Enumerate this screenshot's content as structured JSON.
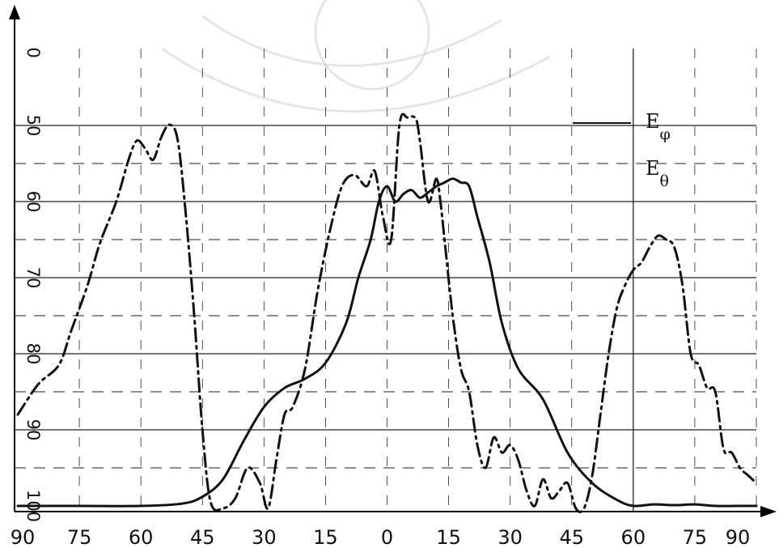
{
  "chart_data": {
    "type": "line",
    "title": "",
    "xlabel": "",
    "ylabel": "",
    "x_ticks": [
      "90",
      "75",
      "60",
      "45",
      "30",
      "15",
      "0",
      "15",
      "30",
      "45",
      "60",
      "75",
      "90"
    ],
    "x_tick_values": [
      -90,
      -75,
      -60,
      -45,
      -30,
      -15,
      0,
      15,
      30,
      45,
      60,
      75,
      90
    ],
    "y_ticks": [
      "0",
      "50",
      "60",
      "70",
      "80",
      "90",
      "100"
    ],
    "xlim": [
      -90,
      90
    ],
    "ylim_scale_labels": [
      "0",
      "50",
      "60",
      "70",
      "80",
      "90",
      "100"
    ],
    "y_inverted": true,
    "grid": true,
    "legend_position": "top-right",
    "legend": [
      {
        "label": "E_φ",
        "base": "E",
        "sub": "φ",
        "style": "solid"
      },
      {
        "label": "E_θ",
        "base": "E",
        "sub": "θ",
        "style": "dash-dot"
      }
    ],
    "series": [
      {
        "name": "E_φ",
        "style": "solid",
        "color": "#111111",
        "x": [
          -90,
          -75,
          -60,
          -50,
          -45,
          -40,
          -35,
          -30,
          -25,
          -20,
          -15,
          -10,
          -7,
          -4,
          -2,
          0,
          2,
          4,
          6,
          8,
          10,
          12,
          14,
          16,
          18,
          20,
          22,
          25,
          28,
          32,
          38,
          44,
          50,
          56,
          60,
          65,
          70,
          75,
          80,
          85,
          90
        ],
        "y": [
          100,
          100,
          100,
          99.7,
          98.8,
          96.5,
          91.5,
          87,
          84.5,
          83.3,
          81.2,
          76,
          70,
          65,
          60,
          58,
          60,
          59,
          58.5,
          59.5,
          58.8,
          58,
          57.5,
          57,
          57.5,
          58,
          62,
          68,
          76,
          82,
          86,
          93,
          97,
          99.2,
          100,
          99.8,
          99.9,
          99.8,
          100,
          100,
          100
        ]
      },
      {
        "name": "E_θ",
        "style": "dash-dot",
        "color": "#111111",
        "x": [
          -90,
          -85,
          -80,
          -77,
          -73,
          -70,
          -66,
          -63,
          -61,
          -59,
          -57,
          -55,
          -53,
          -51,
          -49,
          -47,
          -45,
          -43,
          -40,
          -37,
          -34,
          -31,
          -29,
          -27,
          -25,
          -23,
          -20,
          -17,
          -14,
          -11,
          -8,
          -5,
          -3,
          -1,
          1,
          3,
          5,
          7,
          8,
          10,
          12,
          13,
          14,
          16,
          18,
          20,
          22,
          24,
          26,
          28,
          30,
          32,
          34,
          36,
          38,
          40,
          42,
          44,
          46,
          48,
          50,
          52,
          54,
          56,
          58,
          60,
          62,
          64,
          66,
          68,
          70,
          72,
          74,
          76,
          78,
          80,
          82,
          84,
          86,
          88,
          90
        ],
        "y": [
          88,
          84,
          81.5,
          77,
          71,
          65.5,
          60,
          54.5,
          52,
          53,
          54.5,
          51.5,
          49.5,
          52,
          62,
          75,
          90,
          99.5,
          101,
          99,
          95,
          97,
          102,
          94,
          88,
          87,
          82,
          72,
          64,
          58,
          56.5,
          58,
          56,
          62,
          65,
          50,
          44.5,
          45.5,
          52,
          60,
          57,
          60,
          65,
          75,
          82,
          85,
          92,
          95,
          91,
          93,
          92,
          94,
          98,
          100,
          96.5,
          99,
          98,
          97,
          101,
          102,
          96,
          88,
          80,
          74,
          71,
          69,
          68,
          66,
          64.5,
          65,
          66,
          71,
          80,
          81.5,
          84.5,
          85,
          92.5,
          93,
          95,
          96,
          97
        ]
      }
    ]
  }
}
